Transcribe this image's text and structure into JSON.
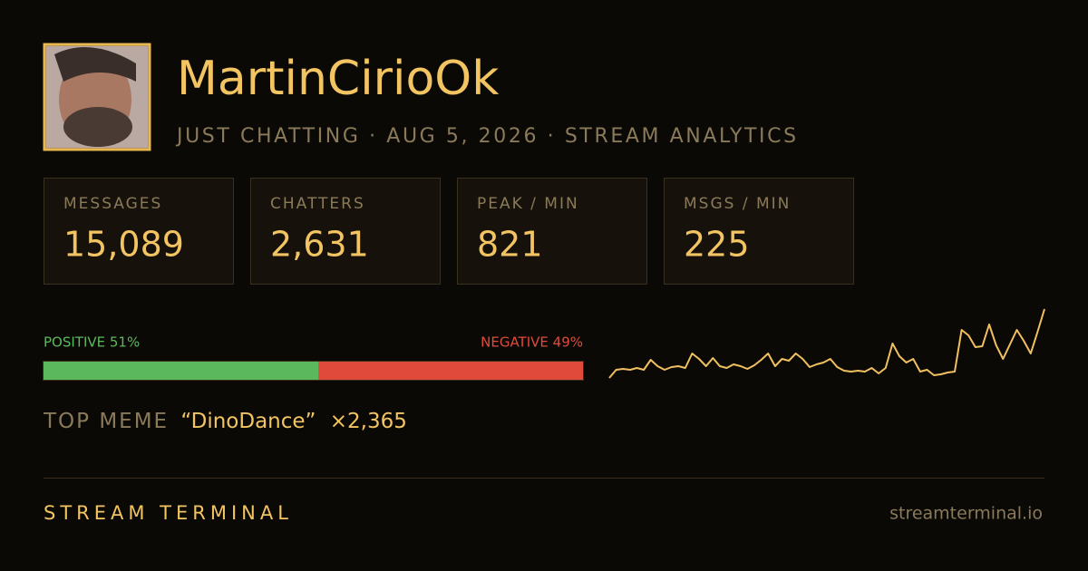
{
  "header": {
    "name": "MartinCirioOk",
    "subtitle": "JUST CHATTING · AUG 5, 2026 · STREAM ANALYTICS"
  },
  "stats": [
    {
      "label": "MESSAGES",
      "value": "15,089"
    },
    {
      "label": "CHATTERS",
      "value": "2,631"
    },
    {
      "label": "PEAK / MIN",
      "value": "821"
    },
    {
      "label": "MSGS / MIN",
      "value": "225"
    }
  ],
  "sentiment": {
    "positive": {
      "value": 51,
      "label": "POSITIVE 51%",
      "color": "#5cb85c"
    },
    "negative": {
      "value": 49,
      "label": "NEGATIVE 49%",
      "color": "#e04a3a"
    }
  },
  "top_meme": {
    "label": "TOP MEME",
    "meme": "“DinoDance”",
    "count": "×2,365"
  },
  "sparkline": {
    "type": "line",
    "color": "#f0c060",
    "values": [
      3,
      12,
      13,
      12,
      14,
      12,
      23,
      16,
      12,
      15,
      16,
      14,
      30,
      24,
      16,
      25,
      16,
      14,
      18,
      16,
      13,
      17,
      23,
      30,
      16,
      24,
      22,
      30,
      24,
      15,
      18,
      20,
      24,
      15,
      11,
      10,
      11,
      10,
      14,
      8,
      14,
      41,
      27,
      20,
      24,
      10,
      12,
      6,
      7,
      9,
      10,
      56,
      50,
      37,
      38,
      62,
      39,
      24,
      40,
      56,
      44,
      30,
      54,
      79
    ]
  },
  "footer": {
    "brand": "STREAM TERMINAL",
    "url": "streamterminal.io"
  }
}
